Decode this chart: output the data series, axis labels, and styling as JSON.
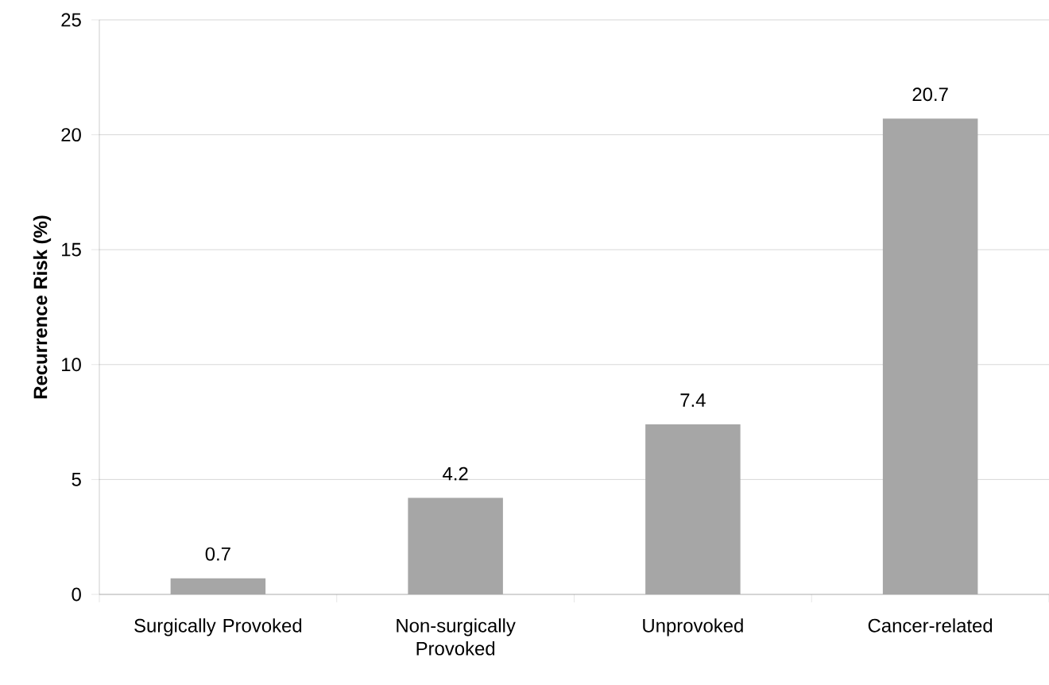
{
  "chart_data": {
    "type": "bar",
    "ylabel": "Recurrence Risk (%)",
    "categories": [
      "Surgically Provoked",
      "Non-surgically Provoked",
      "Unprovoked",
      "Cancer-related"
    ],
    "values": [
      0.7,
      4.2,
      7.4,
      20.7
    ],
    "color": "#a6a6a6",
    "data_labels": true,
    "ylim": [
      0,
      25
    ],
    "yticks": [
      0,
      5,
      10,
      15,
      20,
      25
    ],
    "grid": "y"
  }
}
